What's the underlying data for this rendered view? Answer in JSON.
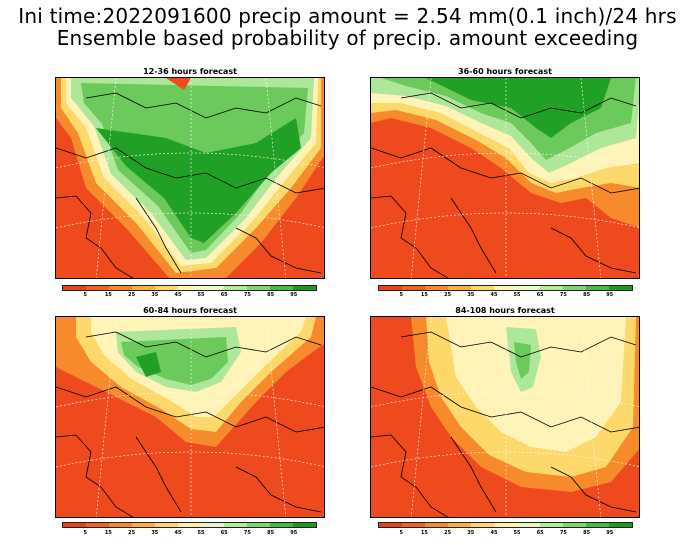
{
  "header": {
    "line1": "Ini time:2022091600 precip amount = 2.54 mm(0.1 inch)/24 hrs",
    "line2": "Ensemble based probability of precip. amount exceeding"
  },
  "panels": [
    {
      "title": "12-36 hours forecast"
    },
    {
      "title": "36-60 hours forecast"
    },
    {
      "title": "60-84 hours forecast"
    },
    {
      "title": "84-108 hours forecast"
    }
  ],
  "colorbar": {
    "ticks": [
      "5",
      "15",
      "25",
      "35",
      "45",
      "55",
      "65",
      "75",
      "85",
      "95"
    ],
    "colors": [
      "#e8401a",
      "#f06020",
      "#f7892a",
      "#fbb038",
      "#fdd66e",
      "#fff1b4",
      "#e7f7c8",
      "#b4e89a",
      "#7fd66e",
      "#46bb3f",
      "#1c9a20"
    ]
  },
  "colors": {
    "base": "#ee4a1e",
    "orange": "#f78a2a",
    "yellow": "#fdd86a",
    "pale": "#fff3b8",
    "light_green": "#aee69a",
    "mid_green": "#6cc95c",
    "dark_green": "#20a024"
  }
}
